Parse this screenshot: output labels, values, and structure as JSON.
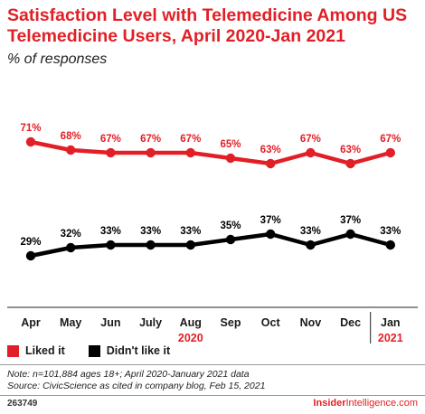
{
  "header": {
    "title": "Satisfaction Level with Telemedicine Among US Telemedicine Users, April 2020-Jan 2021",
    "subtitle": "% of responses"
  },
  "chart_data": {
    "type": "line",
    "title": "Satisfaction Level with Telemedicine Among US Telemedicine Users, April 2020-Jan 2021",
    "subtitle": "% of responses",
    "categories": [
      "Apr",
      "May",
      "Jun",
      "July",
      "Aug",
      "Sep",
      "Oct",
      "Nov",
      "Dec",
      "Jan"
    ],
    "year_labels": [
      {
        "label": "2020",
        "under": "Aug"
      },
      {
        "label": "2021",
        "under": "Jan"
      }
    ],
    "series": [
      {
        "name": "Liked it",
        "color": "#e21f26",
        "values": [
          71,
          68,
          67,
          67,
          67,
          65,
          63,
          67,
          63,
          67
        ]
      },
      {
        "name": "Didn't like it",
        "color": "#000000",
        "values": [
          29,
          32,
          33,
          33,
          33,
          35,
          37,
          33,
          37,
          33
        ]
      }
    ],
    "ylim": [
      10,
      90
    ],
    "grid": false,
    "legend": "bottom-left"
  },
  "footer": {
    "note": "Note: n=101,884 ages 18+; April 2020-January 2021 data",
    "source": "Source: CivicScience as cited in company blog, Feb 15, 2021",
    "chart_id": "263749",
    "brand_bold": "Insider",
    "brand_thin": "Intelligence",
    "brand_suffix": ".com"
  }
}
